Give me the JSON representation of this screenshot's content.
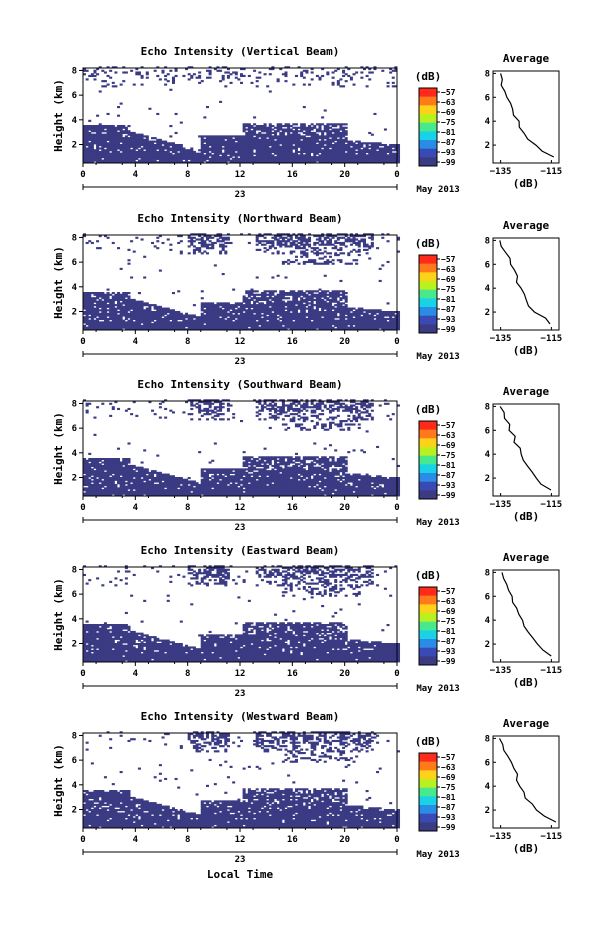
{
  "figure": {
    "x_axis_title": "Local Time",
    "date_label": "May 2013",
    "day_label": "23"
  },
  "colorbar": {
    "unit_label": "(dB)",
    "tick_labels": [
      "−57",
      "−63",
      "−69",
      "−75",
      "−81",
      "−87",
      "−93",
      "−99"
    ],
    "colors": [
      "#ff2a1a",
      "#ff7a1a",
      "#ffd21a",
      "#b8f020",
      "#48e88c",
      "#1ad2e6",
      "#2a8ce6",
      "#3a4ab4",
      "#3b3b84"
    ]
  },
  "colors": {
    "echo": "#3b3b84",
    "axis": "#000000",
    "profile": "#000000"
  },
  "chart_data": [
    {
      "type": "heatmap",
      "title": "Echo Intensity (Vertical Beam)",
      "ylabel": "Height (km)",
      "x_ticks": [
        "0",
        "4",
        "8",
        "12",
        "16",
        "20",
        "0"
      ],
      "y_ticks": [
        "2",
        "4",
        "6",
        "8"
      ],
      "xlim": [
        0,
        24
      ],
      "ylim": [
        0.5,
        8.2
      ],
      "profile": {
        "title": "Average",
        "xlabel": "(dB)",
        "x_ticks": [
          "−135",
          "−115"
        ],
        "y_ticks": [
          "2",
          "4",
          "6",
          "8"
        ],
        "height_km": [
          1,
          1.5,
          2,
          2.5,
          3,
          3.5,
          4,
          4.5,
          5,
          5.5,
          6,
          6.5,
          7,
          7.5,
          8
        ],
        "avg_dB": [
          -114,
          -118,
          -121,
          -124,
          -126,
          -127,
          -128,
          -130,
          -130,
          -131,
          -132,
          -133,
          -134,
          -134,
          -135
        ]
      }
    },
    {
      "type": "heatmap",
      "title": "Echo Intensity (Northward Beam)",
      "ylabel": "Height (km)",
      "x_ticks": [
        "0",
        "4",
        "8",
        "12",
        "16",
        "20",
        "0"
      ],
      "y_ticks": [
        "2",
        "4",
        "6",
        "8"
      ],
      "xlim": [
        0,
        24
      ],
      "ylim": [
        0.5,
        8.2
      ],
      "profile": {
        "title": "Average",
        "xlabel": "(dB)",
        "x_ticks": [
          "−135",
          "−115"
        ],
        "y_ticks": [
          "2",
          "4",
          "6",
          "8"
        ],
        "height_km": [
          1,
          1.5,
          2,
          2.5,
          3,
          3.5,
          4,
          4.5,
          5,
          5.5,
          6,
          6.5,
          7,
          7.5,
          8
        ],
        "avg_dB": [
          -115,
          -118,
          -121,
          -124,
          -125,
          -126,
          -127,
          -128,
          -129,
          -130,
          -131,
          -132,
          -133,
          -134,
          -135
        ]
      }
    },
    {
      "type": "heatmap",
      "title": "Echo Intensity (Southward Beam)",
      "ylabel": "Height (km)",
      "x_ticks": [
        "0",
        "4",
        "8",
        "12",
        "16",
        "20",
        "0"
      ],
      "y_ticks": [
        "2",
        "4",
        "6",
        "8"
      ],
      "xlim": [
        0,
        24
      ],
      "ylim": [
        0.5,
        8.2
      ],
      "profile": {
        "title": "Average",
        "xlabel": "(dB)",
        "x_ticks": [
          "−135",
          "−115"
        ],
        "y_ticks": [
          "2",
          "4",
          "6",
          "8"
        ],
        "height_km": [
          1,
          1.5,
          2,
          2.5,
          3,
          3.5,
          4,
          4.5,
          5,
          5.5,
          6,
          6.5,
          7,
          7.5,
          8
        ],
        "avg_dB": [
          -115,
          -119,
          -121,
          -123,
          -125,
          -126,
          -127,
          -128,
          -129,
          -130,
          -131,
          -132,
          -133,
          -134,
          -135
        ]
      }
    },
    {
      "type": "heatmap",
      "title": "Echo Intensity (Eastward Beam)",
      "ylabel": "Height (km)",
      "x_ticks": [
        "0",
        "4",
        "8",
        "12",
        "16",
        "20",
        "0"
      ],
      "y_ticks": [
        "2",
        "4",
        "6",
        "8"
      ],
      "xlim": [
        0,
        24
      ],
      "ylim": [
        0.5,
        8.2
      ],
      "profile": {
        "title": "Average",
        "xlabel": "(dB)",
        "x_ticks": [
          "−135",
          "−115"
        ],
        "y_ticks": [
          "2",
          "4",
          "6",
          "8"
        ],
        "height_km": [
          1,
          1.5,
          2,
          2.5,
          3,
          3.5,
          4,
          4.5,
          5,
          5.5,
          6,
          6.5,
          7,
          7.5,
          8
        ],
        "avg_dB": [
          -115,
          -118,
          -121,
          -123,
          -124,
          -126,
          -127,
          -128,
          -129,
          -130,
          -131,
          -132,
          -133,
          -134,
          -135
        ]
      }
    },
    {
      "type": "heatmap",
      "title": "Echo Intensity (Westward Beam)",
      "ylabel": "Height (km)",
      "x_ticks": [
        "0",
        "4",
        "8",
        "12",
        "16",
        "20",
        "0"
      ],
      "y_ticks": [
        "2",
        "4",
        "6",
        "8"
      ],
      "xlim": [
        0,
        24
      ],
      "ylim": [
        0.5,
        8.2
      ],
      "profile": {
        "title": "Average",
        "xlabel": "(dB)",
        "x_ticks": [
          "−135",
          "−115"
        ],
        "y_ticks": [
          "2",
          "4",
          "6",
          "8"
        ],
        "height_km": [
          1,
          1.5,
          2,
          2.5,
          3,
          3.5,
          4,
          4.5,
          5,
          5.5,
          6,
          6.5,
          7,
          7.5,
          8
        ],
        "avg_dB": [
          -114,
          -118,
          -121,
          -123,
          -125,
          -126,
          -127,
          -128,
          -129,
          -130,
          -131,
          -132,
          -133,
          -134,
          -135
        ]
      }
    }
  ]
}
